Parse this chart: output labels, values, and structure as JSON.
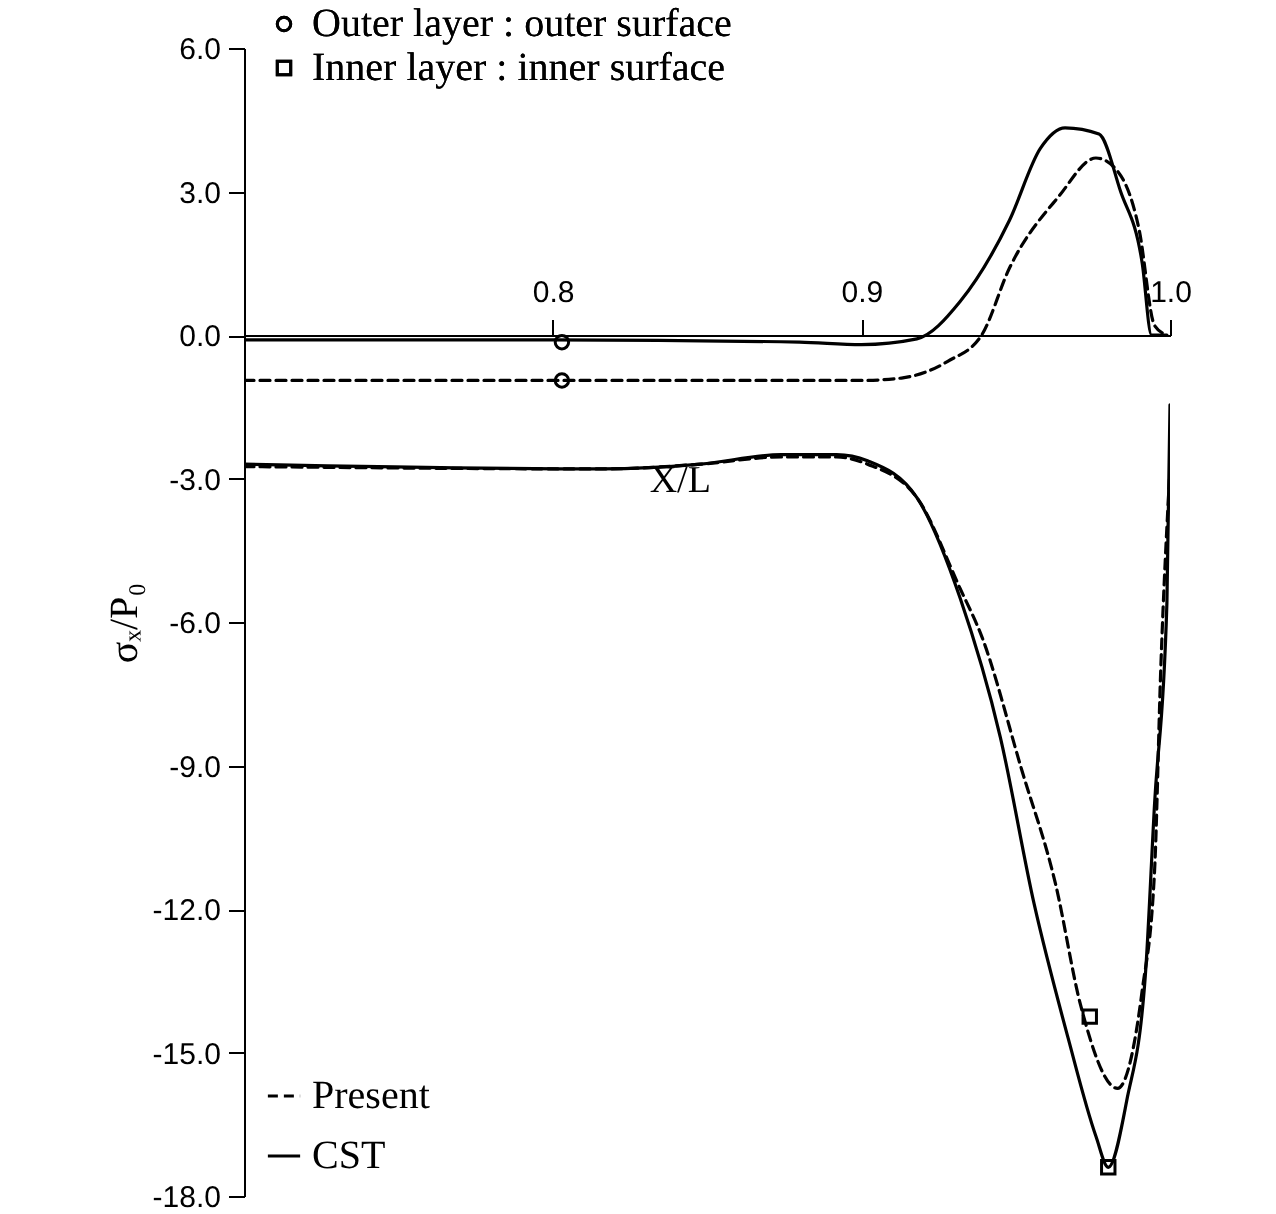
{
  "chart_data": {
    "type": "line",
    "xlabel": "X/L",
    "ylabel": "σₓ/P₀",
    "xlim": [
      0.7,
      1.0
    ],
    "xticks": [
      {
        "value": 0.8,
        "label": "0.8"
      },
      {
        "value": 0.9,
        "label": "0.9"
      },
      {
        "value": 1.0,
        "label": "1.0"
      }
    ],
    "ylim": [
      -18,
      6
    ],
    "yticks": [
      {
        "value": 6,
        "label": "6.0"
      },
      {
        "value": 3,
        "label": "3.0"
      },
      {
        "value": 0,
        "label": "0.0"
      },
      {
        "value": -3,
        "label": "-3.0"
      },
      {
        "value": -6,
        "label": "-6.0"
      },
      {
        "value": -9,
        "label": "-9.0"
      },
      {
        "value": -12,
        "label": "-12.0"
      },
      {
        "value": -15,
        "label": "-15.0"
      },
      {
        "value": -18,
        "label": "-18.0"
      }
    ],
    "grid": false,
    "legend": "top left",
    "series": [
      {
        "name": "Present",
        "type": "line",
        "line_style": "dashed",
        "color": "#000000",
        "x": [
          0.7,
          0.8,
          0.88,
          0.9,
          0.913,
          0.928,
          0.939,
          0.948,
          0.964,
          0.976,
          0.982,
          0.99,
          0.995,
          0.999
        ],
        "values": [
          -0.95,
          -0.95,
          -0.95,
          -0.95,
          -0.9,
          -0.55,
          0.0,
          1.4,
          2.9,
          3.7,
          3.5,
          2.2,
          0.2,
          0.0
        ]
      },
      {
        "name": "CST",
        "type": "line",
        "line_style": "solid",
        "color": "#000000",
        "x": [
          0.7,
          0.8,
          0.88,
          0.9,
          0.918,
          0.932,
          0.948,
          0.958,
          0.966,
          0.977,
          0.984,
          0.991,
          0.994,
          0.999
        ],
        "values": [
          -0.1,
          -0.1,
          -0.15,
          -0.2,
          -0.08,
          0.7,
          2.4,
          3.9,
          4.33,
          4.2,
          3.0,
          1.5,
          0.0,
          0.0
        ]
      },
      {
        "type": "line",
        "line_style": "dashed",
        "color": "#000000",
        "x": [
          0.7,
          0.816,
          0.848,
          0.874,
          0.892,
          0.902,
          0.918,
          0.932,
          0.939,
          0.952,
          0.963,
          0.971,
          0.983,
          0.991,
          0.995,
          0.997,
          1.0
        ],
        "values": [
          -2.75,
          -2.8,
          -2.7,
          -2.55,
          -2.55,
          -2.7,
          -3.4,
          -5.3,
          -6.3,
          -9.1,
          -11.5,
          -14.0,
          -15.75,
          -13.7,
          -11.2,
          -7.0,
          -2.8
        ]
      },
      {
        "type": "line",
        "line_style": "solid",
        "color": "#000000",
        "x": [
          0.7,
          0.816,
          0.848,
          0.874,
          0.892,
          0.902,
          0.918,
          0.932,
          0.945,
          0.956,
          0.967,
          0.976,
          0.98,
          0.986,
          0.992,
          0.995,
          0.999,
          1.0
        ],
        "values": [
          -2.7,
          -2.8,
          -2.7,
          -2.5,
          -2.5,
          -2.63,
          -3.4,
          -5.5,
          -8.4,
          -11.9,
          -14.7,
          -16.75,
          -17.4,
          -16.0,
          -13.4,
          -9.8,
          -5.6,
          -1.46
        ]
      },
      {
        "name": "Outer layer  : outer surface",
        "type": "scatter",
        "marker": "circle",
        "color": "#000000",
        "x": [
          0.803,
          0.803
        ],
        "values": [
          -0.15,
          -0.95
        ]
      },
      {
        "name": "Inner layer : inner surface",
        "type": "scatter",
        "marker": "square",
        "color": "#000000",
        "x": [
          0.974,
          0.98
        ],
        "values": [
          -14.25,
          -17.4
        ]
      }
    ]
  }
}
